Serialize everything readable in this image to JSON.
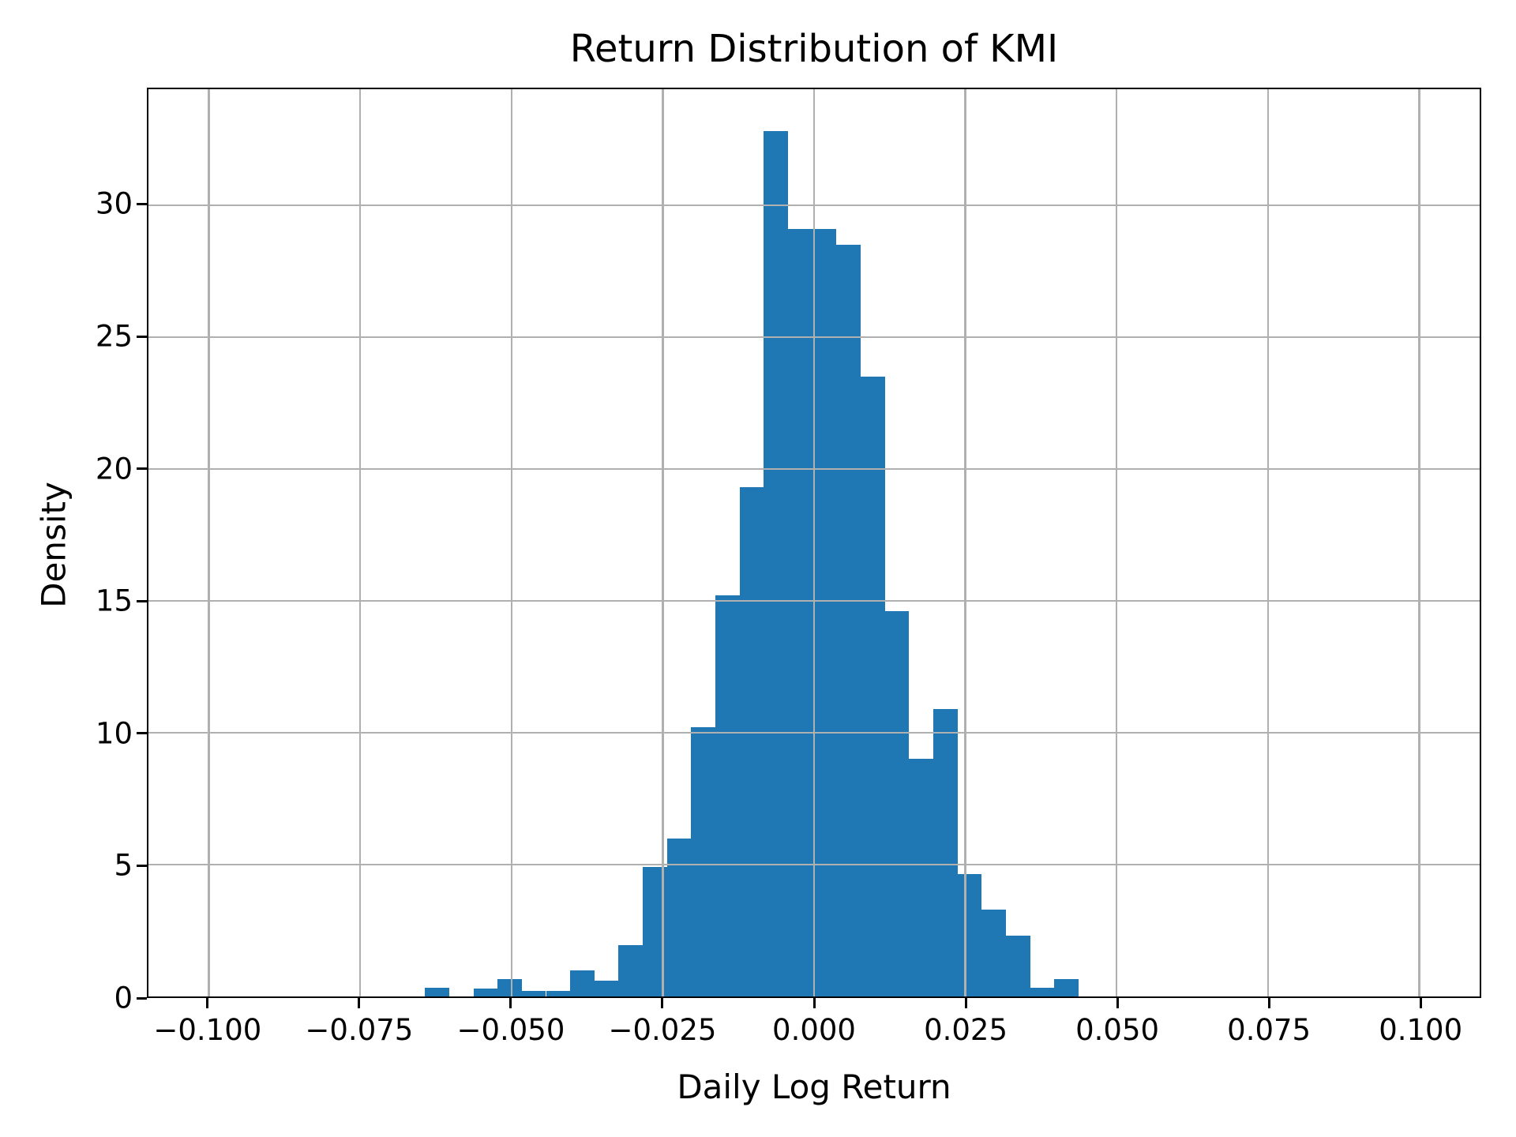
{
  "figure": {
    "title": "Return Distribution of KMI",
    "xlabel": "Daily Log Return",
    "ylabel": "Density"
  },
  "chart_data": {
    "type": "bar",
    "subtype": "histogram",
    "title": "Return Distribution of KMI",
    "xlabel": "Daily Log Return",
    "ylabel": "Density",
    "grid": true,
    "legend": "none",
    "bar_color": "#1f77b4",
    "grid_color": "#b0b0b0",
    "spine_color": "#000000",
    "xlim": [
      -0.11,
      0.11
    ],
    "ylim": [
      0,
      34.4
    ],
    "x_ticks": [
      -0.1,
      -0.075,
      -0.05,
      -0.025,
      0.0,
      0.025,
      0.05,
      0.075,
      0.1
    ],
    "x_tick_labels": [
      "−0.100",
      "−0.075",
      "−0.050",
      "−0.025",
      "0.000",
      "0.025",
      "0.050",
      "0.075",
      "0.100"
    ],
    "y_ticks": [
      0,
      5,
      10,
      15,
      20,
      25,
      30
    ],
    "y_tick_labels": [
      "0",
      "5",
      "10",
      "15",
      "20",
      "25",
      "30"
    ],
    "bins": {
      "start": -0.0643,
      "width": 0.004,
      "note": "27 uniform bins; densities read from plot",
      "densities": [
        0.33,
        0,
        0.3,
        0.65,
        0.2,
        0.2,
        1.0,
        0.6,
        1.95,
        4.9,
        6.0,
        10.2,
        15.2,
        19.3,
        32.8,
        29.1,
        29.1,
        28.5,
        23.5,
        14.6,
        9.0,
        10.9,
        4.65,
        3.3,
        2.3,
        0.33,
        0.65
      ]
    }
  }
}
